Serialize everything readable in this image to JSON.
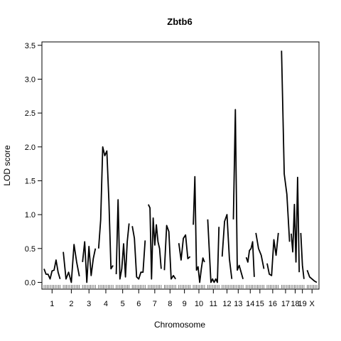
{
  "chart_data": {
    "type": "line",
    "title": "Zbtb6",
    "xlabel": "Chromosome",
    "ylabel": "LOD score",
    "ylim": [
      -0.1,
      3.55
    ],
    "y_ticks": [
      "0.0",
      "0.5",
      "1.0",
      "1.5",
      "2.0",
      "2.5",
      "3.0",
      "3.5"
    ],
    "grid": false,
    "legend": "none",
    "colors": {
      "line": "#000000",
      "axis": "#000000",
      "background": "#ffffff"
    },
    "chromosomes": [
      {
        "label": "1",
        "span": [
          0,
          20
        ],
        "pos": [
          0,
          2,
          4,
          6,
          8,
          10,
          12,
          14,
          16,
          18,
          20
        ],
        "lod": [
          0.2,
          0.12,
          0.12,
          0.05,
          0.17,
          0.18,
          0.33,
          0.15,
          0.05
        ]
      },
      {
        "label": "2",
        "span": [
          24,
          44
        ],
        "pos": [
          0,
          2,
          4,
          6,
          8,
          10,
          12,
          14,
          16,
          18,
          20
        ],
        "lod": [
          0.45,
          0.05,
          0.15,
          0.0,
          0.56,
          0.3,
          0.09
        ]
      },
      {
        "label": "3",
        "span": [
          48,
          64
        ],
        "pos": [
          0,
          2,
          4,
          6,
          8,
          10,
          12,
          14,
          16
        ],
        "lod": [
          0.3,
          0.6,
          0.0,
          0.53,
          0.1,
          0.35,
          0.5
        ]
      },
      {
        "label": "4",
        "span": [
          68,
          86
        ],
        "pos": [
          0,
          2,
          4,
          6,
          8,
          10,
          12,
          14,
          16,
          18
        ],
        "lod": [
          0.5,
          0.92,
          2.0,
          1.87,
          1.94,
          1.2,
          0.2,
          0.25
        ]
      },
      {
        "label": "5",
        "span": [
          90,
          106
        ],
        "pos": [
          0,
          2,
          4,
          6,
          8,
          10,
          12,
          14,
          16
        ],
        "lod": [
          0.12,
          1.22,
          0.05,
          0.2,
          0.57,
          0.08,
          0.6,
          0.87
        ]
      },
      {
        "label": "6",
        "span": [
          110,
          126
        ],
        "pos": [
          0,
          2,
          4,
          6,
          8,
          10,
          12,
          14,
          16
        ],
        "lod": [
          0.83,
          0.65,
          0.08,
          0.05,
          0.15,
          0.15,
          0.62
        ]
      },
      {
        "label": "7",
        "span": [
          130,
          146
        ],
        "pos": [
          0,
          2,
          4,
          6,
          8,
          10,
          12,
          14,
          16
        ],
        "lod": [
          1.15,
          1.1,
          0.05,
          0.95,
          0.55,
          0.85,
          0.6,
          0.5,
          0.2
        ]
      },
      {
        "label": "8",
        "span": [
          150,
          164
        ],
        "pos": [
          0,
          2,
          4,
          6,
          8,
          10,
          12,
          14
        ],
        "lod": [
          0.18,
          0.84,
          0.75,
          0.05,
          0.1,
          0.05
        ]
      },
      {
        "label": "9",
        "span": [
          168,
          182
        ],
        "pos": [
          0,
          2,
          4,
          6,
          8,
          10,
          12,
          14
        ],
        "lod": [
          0.58,
          0.33,
          0.65,
          0.7,
          0.35,
          0.38
        ]
      },
      {
        "label": "10",
        "span": [
          186,
          200
        ],
        "pos": [
          0,
          2,
          4,
          6,
          8,
          10,
          12,
          14
        ],
        "lod": [
          0.85,
          1.56,
          0.18,
          0.23,
          0.0,
          0.2,
          0.36,
          0.3
        ]
      },
      {
        "label": "11",
        "span": [
          204,
          218
        ],
        "pos": [
          0,
          2,
          4,
          6,
          8,
          10,
          12,
          14
        ],
        "lod": [
          0.93,
          0.45,
          0.0,
          0.05,
          0.0,
          0.05,
          0.0,
          0.82
        ]
      },
      {
        "label": "12",
        "span": [
          222,
          234
        ],
        "pos": [
          0,
          2,
          4,
          6,
          8,
          10,
          12
        ],
        "lod": [
          0.38,
          0.9,
          1.0,
          0.35,
          0.05
        ]
      },
      {
        "label": "13",
        "span": [
          236,
          248
        ],
        "pos": [
          0,
          2,
          4,
          6,
          8,
          10,
          12
        ],
        "lod": [
          0.93,
          2.55,
          0.18,
          0.25,
          0.15,
          0.05
        ]
      },
      {
        "label": "14",
        "span": [
          252,
          262
        ],
        "pos": [
          0,
          2,
          4,
          6,
          8,
          10
        ],
        "lod": [
          0.37,
          0.3,
          0.47,
          0.5,
          0.6,
          0.08
        ]
      },
      {
        "label": "15",
        "span": [
          264,
          274
        ],
        "pos": [
          0,
          2,
          4,
          6,
          8,
          10
        ],
        "lod": [
          0.73,
          0.5,
          0.4,
          0.2
        ]
      },
      {
        "label": "16",
        "span": [
          278,
          292
        ],
        "pos": [
          0,
          2,
          4,
          6,
          8,
          10,
          12,
          14
        ],
        "lod": [
          0.28,
          0.12,
          0.1,
          0.63,
          0.4,
          0.73
        ]
      },
      {
        "label": "17",
        "span": [
          296,
          306
        ],
        "pos": [
          0,
          2,
          4,
          6,
          8,
          10
        ],
        "lod": [
          3.42,
          1.6,
          1.3,
          0.6
        ]
      },
      {
        "label": "18",
        "span": [
          308,
          318
        ],
        "pos": [
          0,
          2,
          4,
          6,
          8,
          10
        ],
        "lod": [
          0.72,
          0.45,
          1.15,
          0.3,
          1.55,
          0.15
        ]
      },
      {
        "label": "19",
        "span": [
          320,
          324
        ],
        "pos": [
          0,
          2,
          4
        ],
        "lod": [
          0.73,
          0.25,
          0.05
        ]
      },
      {
        "label": "X",
        "span": [
          328,
          340
        ],
        "pos": [
          0,
          2,
          4,
          6,
          8,
          10,
          12
        ],
        "lod": [
          0.18,
          0.08,
          0.05,
          0.02,
          0.0
        ]
      }
    ]
  }
}
